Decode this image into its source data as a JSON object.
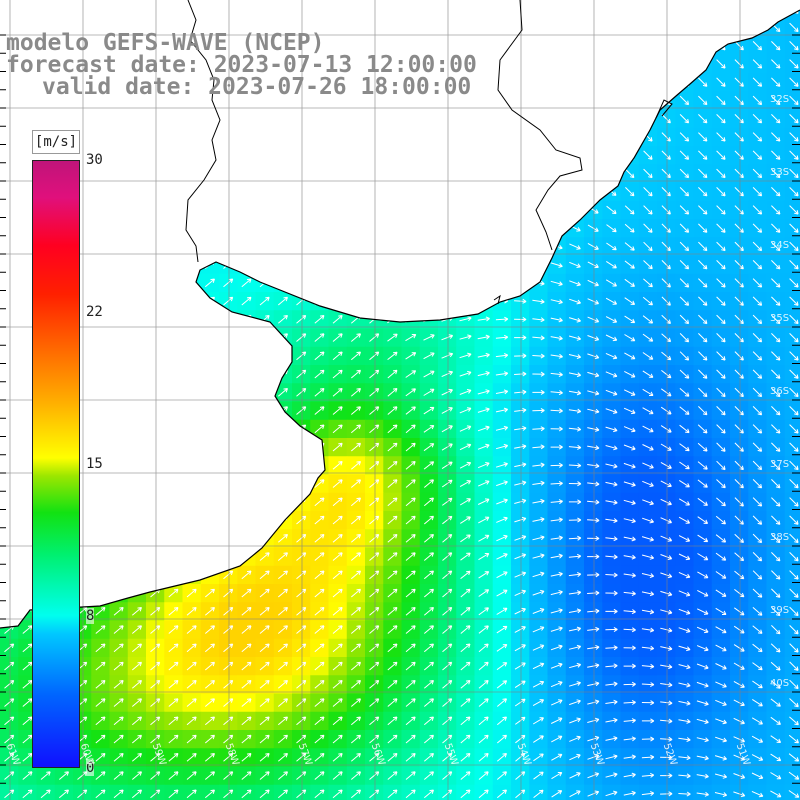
{
  "title": {
    "line1": "modelo GEFS-WAVE (NCEP)",
    "line2": "forecast date: 2023-07-13 12:00:00",
    "line3": "valid date: 2023-07-26 18:00:00"
  },
  "colorbar": {
    "unit": "[m/s]",
    "ticks": [
      "30",
      "22",
      "15",
      "8",
      "0"
    ],
    "tick_values": [
      30,
      22,
      15,
      8,
      0
    ],
    "min": 0,
    "max": 30
  },
  "axes": {
    "lon_labels": [
      "61W",
      "60W",
      "59W",
      "58W",
      "57W",
      "56W",
      "55W",
      "54W",
      "53W",
      "52W",
      "51W"
    ],
    "lat_labels": [
      "32S",
      "33S",
      "34S",
      "35S",
      "36S",
      "37S",
      "38S",
      "39S",
      "40S"
    ]
  },
  "colors": {
    "land": "#ffffff",
    "coast": "#000000",
    "grid": "#808080",
    "arrow": "#ffffff"
  },
  "field": {
    "variable": "wind speed",
    "direction": "wind direction",
    "note_hint": "strongest winds (yellow) along the coast SW, weakest (blue) offshore east"
  }
}
